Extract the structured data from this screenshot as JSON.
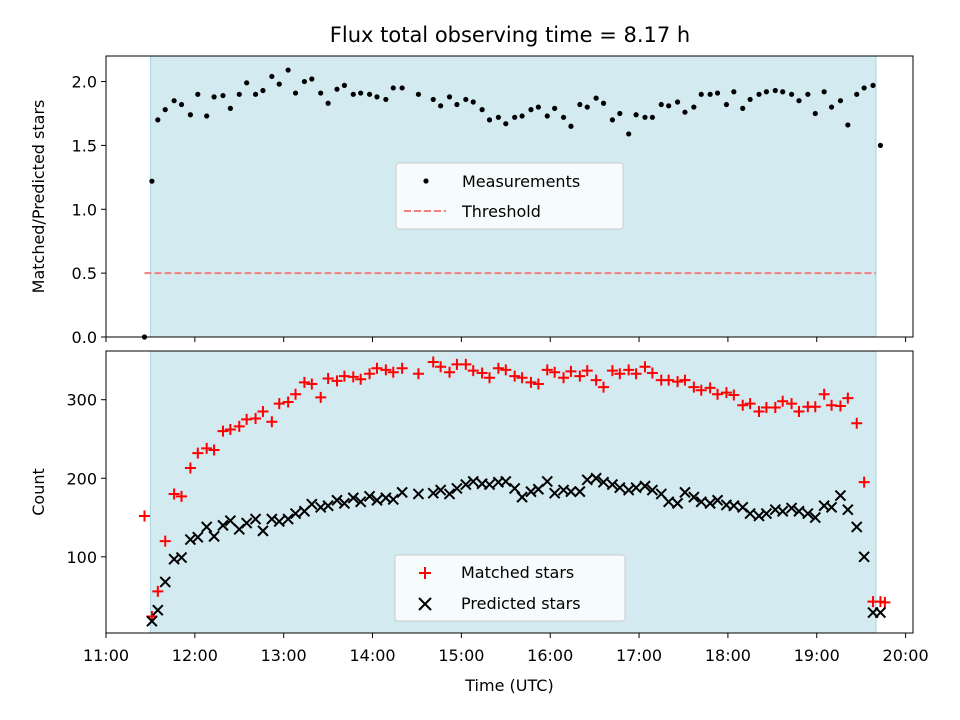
{
  "title": "Flux total observing time = 8.17 h",
  "colors": {
    "shade": "#d3eaf0",
    "measurement": "#000000",
    "threshold": "#f08080",
    "matched": "#ff0000",
    "predicted": "#000000"
  },
  "chart_data": [
    {
      "type": "scatter",
      "panel": "top",
      "ylabel": "Matched/Predicted stars",
      "xlim": [
        "11:00",
        "20:05"
      ],
      "ylim": [
        0,
        2.2
      ],
      "yticks": [
        "0.0",
        "0.5",
        "1.0",
        "1.5",
        "2.0"
      ],
      "shaded_range": [
        "11:30",
        "19:40"
      ],
      "threshold": 0.5,
      "threshold_range": [
        "11:26",
        "19:40"
      ],
      "legend": {
        "placement": "center",
        "entries": [
          "Measurements",
          "Threshold"
        ]
      },
      "series": [
        {
          "name": "Measurements",
          "marker": "dot",
          "x": [
            "11:26",
            "11:31",
            "11:35",
            "11:40",
            "11:46",
            "11:51",
            "11:57",
            "12:02",
            "12:08",
            "12:13",
            "12:19",
            "12:24",
            "12:30",
            "12:35",
            "12:41",
            "12:46",
            "12:52",
            "12:57",
            "13:03",
            "13:08",
            "13:14",
            "13:19",
            "13:25",
            "13:30",
            "13:36",
            "13:41",
            "13:47",
            "13:52",
            "13:58",
            "14:03",
            "14:09",
            "14:14",
            "14:20",
            "14:31",
            "14:41",
            "14:46",
            "14:52",
            "14:57",
            "15:03",
            "15:08",
            "15:14",
            "15:19",
            "15:25",
            "15:30",
            "15:36",
            "15:41",
            "15:47",
            "15:52",
            "15:58",
            "16:03",
            "16:09",
            "16:14",
            "16:20",
            "16:25",
            "16:31",
            "16:36",
            "16:42",
            "16:47",
            "16:53",
            "16:58",
            "17:04",
            "17:09",
            "17:15",
            "17:20",
            "17:26",
            "17:31",
            "17:37",
            "17:42",
            "17:48",
            "17:53",
            "17:59",
            "18:04",
            "18:10",
            "18:15",
            "18:21",
            "18:26",
            "18:32",
            "18:37",
            "18:43",
            "18:48",
            "18:54",
            "18:59",
            "19:05",
            "19:10",
            "19:16",
            "19:21",
            "19:27",
            "19:32",
            "19:38",
            "19:43"
          ],
          "y": [
            0.0,
            1.22,
            1.7,
            1.78,
            1.85,
            1.82,
            1.74,
            1.9,
            1.73,
            1.88,
            1.89,
            1.79,
            1.9,
            1.99,
            1.9,
            1.93,
            2.04,
            1.98,
            2.09,
            1.91,
            2.0,
            2.02,
            1.91,
            1.83,
            1.94,
            1.97,
            1.9,
            1.91,
            1.9,
            1.88,
            1.86,
            1.95,
            1.95,
            1.9,
            1.86,
            1.81,
            1.88,
            1.82,
            1.86,
            1.84,
            1.78,
            1.7,
            1.72,
            1.67,
            1.72,
            1.73,
            1.78,
            1.8,
            1.73,
            1.79,
            1.72,
            1.65,
            1.82,
            1.8,
            1.87,
            1.83,
            1.7,
            1.75,
            1.59,
            1.74,
            1.72,
            1.72,
            1.82,
            1.81,
            1.84,
            1.76,
            1.8,
            1.9,
            1.9,
            1.91,
            1.82,
            1.92,
            1.79,
            1.86,
            1.9,
            1.92,
            1.93,
            1.92,
            1.9,
            1.85,
            1.9,
            1.75,
            1.92,
            1.8,
            1.85,
            1.66,
            1.9,
            1.95,
            1.97,
            1.5
          ]
        },
        {
          "name": "Threshold",
          "style": "dashed"
        }
      ]
    },
    {
      "type": "scatter",
      "panel": "bottom",
      "xlabel": "Time (UTC)",
      "ylabel": "Count",
      "xlim": [
        "11:00",
        "20:05"
      ],
      "ylim": [
        3,
        362
      ],
      "xticks": [
        "11:00",
        "12:00",
        "13:00",
        "14:00",
        "15:00",
        "16:00",
        "17:00",
        "18:00",
        "19:00",
        "20:00"
      ],
      "yticks": [
        "100",
        "200",
        "300"
      ],
      "shaded_range": [
        "11:30",
        "19:40"
      ],
      "legend": {
        "placement": "lower center",
        "entries": [
          "Matched stars",
          "Predicted stars"
        ]
      },
      "series": [
        {
          "name": "Matched stars",
          "marker": "plus",
          "x": [
            "11:26",
            "11:31",
            "11:35",
            "11:40",
            "11:46",
            "11:51",
            "11:57",
            "12:02",
            "12:08",
            "12:13",
            "12:19",
            "12:24",
            "12:30",
            "12:35",
            "12:41",
            "12:46",
            "12:52",
            "12:57",
            "13:03",
            "13:08",
            "13:14",
            "13:19",
            "13:25",
            "13:30",
            "13:36",
            "13:41",
            "13:47",
            "13:52",
            "13:58",
            "14:03",
            "14:09",
            "14:14",
            "14:20",
            "14:31",
            "14:41",
            "14:46",
            "14:52",
            "14:57",
            "15:03",
            "15:08",
            "15:14",
            "15:19",
            "15:25",
            "15:30",
            "15:36",
            "15:41",
            "15:47",
            "15:52",
            "15:58",
            "16:03",
            "16:09",
            "16:14",
            "16:20",
            "16:25",
            "16:31",
            "16:36",
            "16:42",
            "16:47",
            "16:53",
            "16:58",
            "17:04",
            "17:09",
            "17:15",
            "17:20",
            "17:26",
            "17:31",
            "17:37",
            "17:42",
            "17:48",
            "17:53",
            "17:59",
            "18:04",
            "18:10",
            "18:15",
            "18:21",
            "18:26",
            "18:32",
            "18:37",
            "18:43",
            "18:48",
            "18:54",
            "18:59",
            "19:05",
            "19:10",
            "19:16",
            "19:21",
            "19:27",
            "19:32",
            "19:38",
            "19:43",
            "19:46"
          ],
          "y": [
            152,
            24,
            56,
            120,
            180,
            177,
            213,
            232,
            238,
            236,
            260,
            262,
            266,
            275,
            276,
            285,
            272,
            295,
            297,
            307,
            322,
            320,
            303,
            327,
            324,
            330,
            329,
            326,
            333,
            340,
            338,
            335,
            340,
            333,
            348,
            342,
            335,
            345,
            345,
            337,
            334,
            328,
            340,
            338,
            330,
            328,
            322,
            320,
            338,
            335,
            328,
            336,
            330,
            337,
            325,
            316,
            337,
            333,
            338,
            333,
            342,
            334,
            325,
            325,
            323,
            325,
            316,
            312,
            315,
            307,
            309,
            306,
            293,
            295,
            285,
            290,
            290,
            298,
            295,
            285,
            291,
            291,
            307,
            293,
            292,
            302,
            270,
            195,
            43,
            43,
            42
          ]
        },
        {
          "name": "Predicted stars",
          "marker": "cross",
          "x": [
            "11:31",
            "11:35",
            "11:40",
            "11:46",
            "11:51",
            "11:57",
            "12:02",
            "12:08",
            "12:13",
            "12:19",
            "12:24",
            "12:30",
            "12:35",
            "12:41",
            "12:46",
            "12:52",
            "12:57",
            "13:03",
            "13:08",
            "13:14",
            "13:19",
            "13:25",
            "13:30",
            "13:36",
            "13:41",
            "13:47",
            "13:52",
            "13:58",
            "14:03",
            "14:09",
            "14:14",
            "14:20",
            "14:31",
            "14:41",
            "14:46",
            "14:52",
            "14:57",
            "15:03",
            "15:08",
            "15:14",
            "15:19",
            "15:25",
            "15:30",
            "15:36",
            "15:41",
            "15:47",
            "15:52",
            "15:58",
            "16:03",
            "16:09",
            "16:14",
            "16:20",
            "16:25",
            "16:31",
            "16:36",
            "16:42",
            "16:47",
            "16:53",
            "16:58",
            "17:04",
            "17:09",
            "17:15",
            "17:20",
            "17:26",
            "17:31",
            "17:37",
            "17:42",
            "17:48",
            "17:53",
            "17:59",
            "18:04",
            "18:10",
            "18:15",
            "18:21",
            "18:26",
            "18:32",
            "18:37",
            "18:43",
            "18:48",
            "18:54",
            "18:59",
            "19:05",
            "19:10",
            "19:16",
            "19:21",
            "19:27",
            "19:32",
            "19:38",
            "19:43"
          ],
          "y": [
            18,
            32,
            68,
            97,
            99,
            122,
            125,
            138,
            126,
            140,
            146,
            135,
            143,
            148,
            133,
            148,
            145,
            148,
            155,
            158,
            167,
            163,
            165,
            172,
            168,
            175,
            170,
            177,
            172,
            175,
            173,
            182,
            180,
            181,
            185,
            180,
            187,
            192,
            196,
            193,
            192,
            195,
            196,
            187,
            176,
            183,
            186,
            196,
            181,
            185,
            183,
            183,
            198,
            200,
            195,
            192,
            188,
            185,
            188,
            190,
            185,
            180,
            170,
            168,
            182,
            176,
            170,
            168,
            172,
            166,
            165,
            163,
            155,
            152,
            155,
            160,
            158,
            162,
            158,
            155,
            150,
            165,
            163,
            178,
            160,
            138,
            100,
            29,
            29
          ]
        }
      ]
    }
  ]
}
